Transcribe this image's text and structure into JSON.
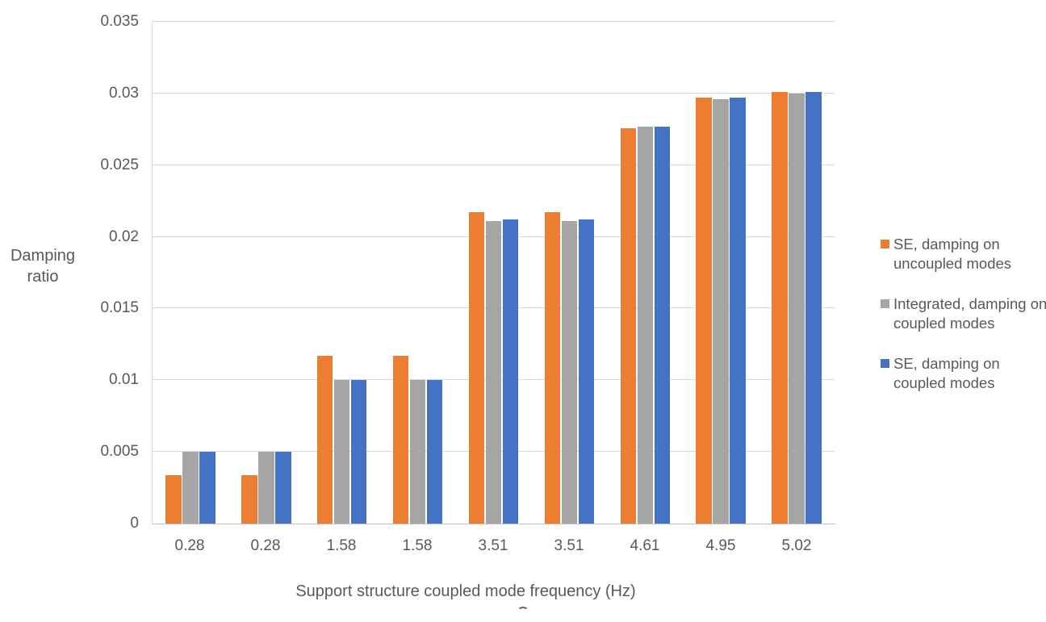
{
  "chart_data": {
    "type": "bar",
    "title": "",
    "xlabel": "Support structure coupled mode frequency (Hz)",
    "ylabel": "Damping ratio",
    "categories": [
      "0.28",
      "0.28",
      "1.58",
      "1.58",
      "3.51",
      "3.51",
      "4.61",
      "4.95",
      "5.02"
    ],
    "series": [
      {
        "name": "SE, damping on uncoupled modes",
        "color": "#ED7D31",
        "values": [
          0.0034,
          0.0034,
          0.0117,
          0.0117,
          0.0217,
          0.0217,
          0.0276,
          0.0297,
          0.0301
        ]
      },
      {
        "name": "Integrated, damping on coupled modes",
        "color": "#A5A5A5",
        "values": [
          0.005,
          0.005,
          0.01,
          0.01,
          0.0211,
          0.0211,
          0.0277,
          0.0296,
          0.03
        ]
      },
      {
        "name": "SE, damping on coupled modes",
        "color": "#4472C4",
        "values": [
          0.005,
          0.005,
          0.01,
          0.01,
          0.0212,
          0.0212,
          0.0277,
          0.0297,
          0.0301
        ]
      }
    ],
    "ylim": [
      0,
      0.035
    ],
    "y_ticks": [
      0,
      0.005,
      0.01,
      0.015,
      0.02,
      0.025,
      0.03,
      0.035
    ],
    "y_tick_labels": [
      "0",
      "0.005",
      "0.01",
      "0.015",
      "0.02",
      "0.025",
      "0.03",
      "0.035"
    ],
    "grid": true,
    "legend_position": "right"
  },
  "colors": {
    "gridline": "#D9D9D9",
    "axis_line": "#BFBFBF",
    "text": "#595959",
    "background": "#FFFFFF"
  }
}
